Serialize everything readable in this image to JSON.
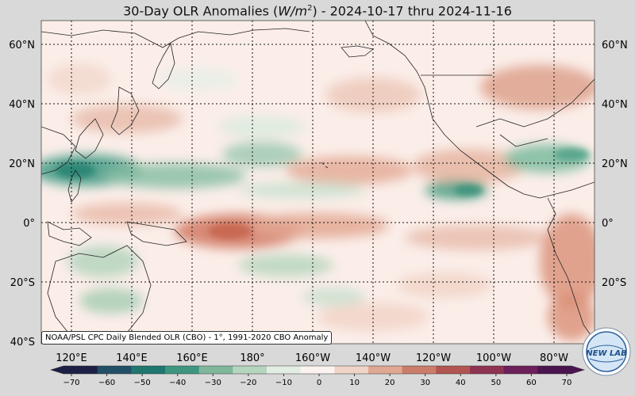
{
  "title": {
    "prefix": "30-Day OLR Anomalies (",
    "units": "W/m",
    "units_power": "2",
    "suffix": ") - 2024-10-17 thru 2024-11-16"
  },
  "map": {
    "lat_labels": [
      "60°N",
      "40°N",
      "20°N",
      "0°",
      "20°S",
      "40°S"
    ],
    "lon_labels": [
      "120°E",
      "140°E",
      "160°E",
      "180°",
      "160°W",
      "140°W",
      "120°W",
      "100°W",
      "80°W"
    ]
  },
  "credit": "NOAA/PSL CPC Daily Blended OLR (CBO) - 1°, 1991-2020 CBO Anomaly",
  "colorbar": {
    "ticks": [
      "−70",
      "−60",
      "−50",
      "−40",
      "−30",
      "−20",
      "−10",
      "0",
      "10",
      "20",
      "30",
      "40",
      "50",
      "60",
      "70"
    ],
    "colors": [
      "#1d1f47",
      "#214f66",
      "#1f776f",
      "#3e9680",
      "#7fb79b",
      "#b6d5bf",
      "#e2eee4",
      "#fbf3ef",
      "#f0d3c7",
      "#e0a792",
      "#cb7d69",
      "#b25452",
      "#8f3352",
      "#6d1f5a",
      "#4a144f"
    ]
  },
  "logo": {
    "text": "NEW LAB"
  }
}
